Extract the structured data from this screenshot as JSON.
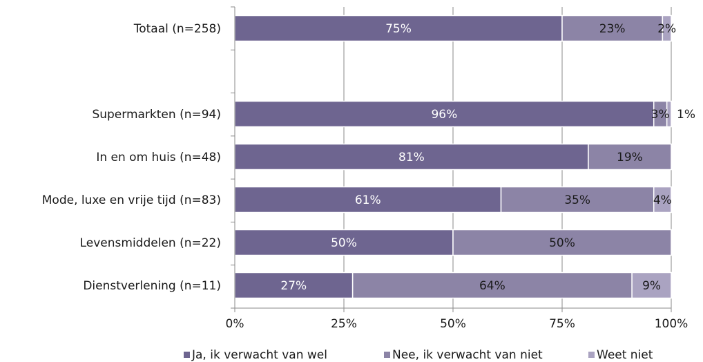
{
  "chart_data": {
    "type": "bar",
    "orientation": "horizontal",
    "stacked": "percent",
    "categories": [
      "Totaal (n=258)",
      "",
      "Supermarkten (n=94)",
      "In en om huis (n=48)",
      "Mode, luxe en vrije tijd (n=83)",
      "Levensmiddelen (n=22)",
      "Dienstverlening (n=11)"
    ],
    "series": [
      {
        "name": "Ja, ik verwacht van wel",
        "color": "#6e6590",
        "label_color": "#ffffff",
        "values": [
          75,
          null,
          96,
          81,
          61,
          50,
          27
        ],
        "labels": [
          "75%",
          "",
          "96%",
          "81%",
          "61%",
          "50%",
          "27%"
        ]
      },
      {
        "name": "Nee, ik verwacht van niet",
        "color": "#8c84a6",
        "label_color": "#1a1a1a",
        "values": [
          23,
          null,
          3,
          19,
          35,
          50,
          64
        ],
        "labels": [
          "23%",
          "",
          "3%",
          "19%",
          "35%",
          "50%",
          "64%"
        ]
      },
      {
        "name": "Weet niet",
        "color": "#aaa3c1",
        "label_color": "#1a1a1a",
        "values": [
          2,
          null,
          1,
          0,
          4,
          0,
          9
        ],
        "labels": [
          "2%",
          "",
          "1%",
          "",
          "4%",
          "",
          "9%"
        ]
      }
    ],
    "x_ticks": [
      "0%",
      "25%",
      "50%",
      "75%",
      "100%"
    ],
    "xlim": [
      0,
      100
    ],
    "grid": true,
    "legend_position": "bottom"
  }
}
